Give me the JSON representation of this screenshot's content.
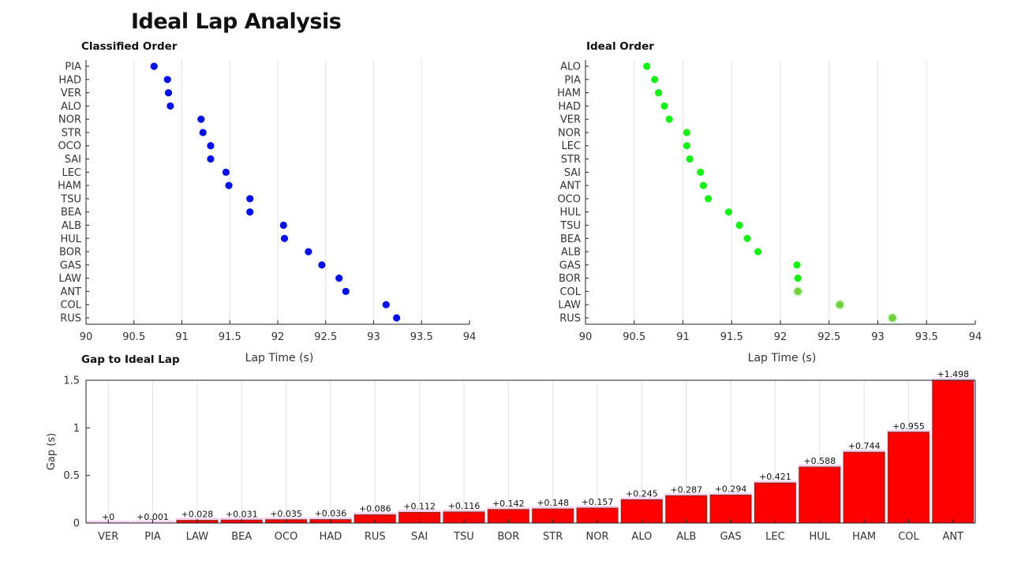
{
  "title": "Ideal Lap Analysis",
  "colors": {
    "classified": "#0010e6",
    "ideal": "#16f016",
    "ideal_highlight": "#6fd03a",
    "bar": "#ff0000",
    "bar_edge": "#8b2a10",
    "bar_glow": "#f3c2f3",
    "grid": "#e2e2e2",
    "axis": "#222222"
  },
  "chart_data": [
    {
      "type": "scatter",
      "title": "Classified Order",
      "xlabel": "Lap Time (s)",
      "ylabel": "",
      "xlim": [
        90,
        94
      ],
      "xticks": [
        "90",
        "90.5",
        "91",
        "91.5",
        "92",
        "92.5",
        "93",
        "93.5",
        "94"
      ],
      "grid": "vertical",
      "drivers": [
        "PIA",
        "HAD",
        "VER",
        "ALO",
        "NOR",
        "STR",
        "OCO",
        "SAI",
        "LEC",
        "HAM",
        "TSU",
        "BEA",
        "ALB",
        "HUL",
        "BOR",
        "GAS",
        "LAW",
        "ANT",
        "COL",
        "RUS"
      ],
      "values": [
        90.71,
        90.85,
        90.86,
        90.88,
        91.2,
        91.22,
        91.3,
        91.3,
        91.46,
        91.49,
        91.71,
        91.71,
        92.06,
        92.07,
        92.32,
        92.46,
        92.64,
        92.71,
        93.13,
        93.24
      ]
    },
    {
      "type": "scatter",
      "title": "Ideal Order",
      "xlabel": "Lap Time (s)",
      "ylabel": "",
      "xlim": [
        90,
        94
      ],
      "xticks": [
        "90",
        "90.5",
        "91",
        "91.5",
        "92",
        "92.5",
        "93",
        "93.5",
        "94"
      ],
      "grid": "vertical",
      "drivers": [
        "ALO",
        "PIA",
        "HAM",
        "HAD",
        "VER",
        "NOR",
        "LEC",
        "STR",
        "SAI",
        "ANT",
        "OCO",
        "HUL",
        "TSU",
        "BEA",
        "ALB",
        "GAS",
        "BOR",
        "COL",
        "LAW",
        "RUS"
      ],
      "values": [
        90.63,
        90.71,
        90.75,
        90.81,
        90.86,
        91.04,
        91.04,
        91.07,
        91.18,
        91.21,
        91.26,
        91.47,
        91.58,
        91.66,
        91.77,
        92.17,
        92.18,
        92.18,
        92.61,
        93.15
      ],
      "highlighted": [
        "COL",
        "LAW",
        "RUS"
      ]
    },
    {
      "type": "bar",
      "title": "Gap to Ideal Lap",
      "xlabel": "",
      "ylabel": "Gap (s)",
      "ylim": [
        0,
        1.5
      ],
      "yticks": [
        "0",
        "0.5",
        "1",
        "1.5"
      ],
      "grid": "vertical",
      "categories": [
        "VER",
        "PIA",
        "LAW",
        "BEA",
        "OCO",
        "HAD",
        "RUS",
        "SAI",
        "TSU",
        "BOR",
        "STR",
        "NOR",
        "ALO",
        "ALB",
        "GAS",
        "LEC",
        "HUL",
        "HAM",
        "COL",
        "ANT"
      ],
      "values": [
        0,
        0.001,
        0.028,
        0.031,
        0.035,
        0.036,
        0.086,
        0.112,
        0.116,
        0.142,
        0.148,
        0.157,
        0.245,
        0.287,
        0.294,
        0.421,
        0.588,
        0.744,
        0.955,
        1.498
      ],
      "labels": [
        "+0",
        "+0.001",
        "+0.028",
        "+0.031",
        "+0.035",
        "+0.036",
        "+0.086",
        "+0.112",
        "+0.116",
        "+0.142",
        "+0.148",
        "+0.157",
        "+0.245",
        "+0.287",
        "+0.294",
        "+0.421",
        "+0.588",
        "+0.744",
        "+0.955",
        "+1.498"
      ]
    }
  ]
}
